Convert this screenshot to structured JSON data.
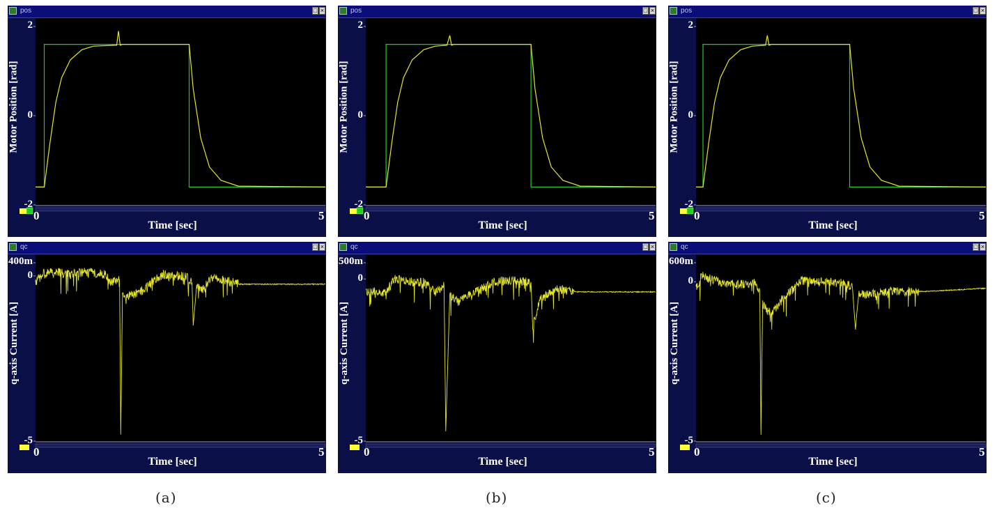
{
  "panels": [
    {
      "id": "a",
      "caption": "(a)",
      "pos_window": {
        "title": "pos",
        "chart_data": {
          "type": "line",
          "xlabel": "Time [sec]",
          "ylabel": "Motor Position [rad]",
          "xlim": [
            0,
            5
          ],
          "ylim": [
            -2,
            2
          ],
          "xticks": [
            "0",
            "5"
          ],
          "yticks": [
            "2",
            "0",
            "-2"
          ],
          "series": [
            {
              "color": "#22cc22",
              "x": [
                0,
                0.15,
                0.15,
                2.65,
                2.65,
                5
              ],
              "y": [
                -1.6,
                -1.6,
                1.6,
                1.6,
                -1.6,
                -1.6
              ]
            },
            {
              "color": "#e6e62a",
              "x": [
                0,
                0.15,
                0.25,
                0.35,
                0.45,
                0.6,
                0.8,
                1.0,
                1.4,
                1.43,
                1.46,
                1.5,
                2.0,
                2.65,
                2.72,
                2.85,
                3.0,
                3.2,
                3.5,
                5
              ],
              "y": [
                -1.6,
                -1.6,
                -0.6,
                0.3,
                0.85,
                1.25,
                1.48,
                1.56,
                1.58,
                1.9,
                1.58,
                1.6,
                1.6,
                1.6,
                0.6,
                -0.5,
                -1.15,
                -1.45,
                -1.58,
                -1.6
              ]
            }
          ]
        }
      },
      "cur_window": {
        "title": "qc",
        "chart_data": {
          "type": "line",
          "xlabel": "Time [sec]",
          "ylabel": "q-axis Current [A]",
          "xlim": [
            0,
            5
          ],
          "ylim": [
            -5,
            0.4
          ],
          "xticks": [
            "0",
            "5"
          ],
          "yticks": [
            "400m",
            "0",
            "-5"
          ],
          "series": [
            {
              "color": "#e6e62a",
              "x": [
                0,
                0.15,
                0.4,
                0.6,
                0.8,
                1.0,
                1.2,
                1.3,
                1.45,
                1.47,
                1.5,
                1.6,
                1.8,
                2.0,
                2.2,
                2.4,
                2.6,
                2.7,
                2.72,
                2.78,
                2.9,
                3.0,
                3.2,
                3.5,
                4.0,
                4.5,
                5
              ],
              "y": [
                -0.2,
                0.1,
                0.1,
                0.05,
                0.1,
                0.1,
                0.05,
                -0.2,
                -0.1,
                -4.8,
                -0.5,
                -0.6,
                -0.5,
                -0.2,
                0.05,
                0.0,
                0.0,
                -0.2,
                -1.5,
                -0.3,
                -0.4,
                -0.1,
                -0.1,
                -0.25,
                -0.25,
                -0.25,
                -0.25
              ]
            }
          ]
        }
      }
    },
    {
      "id": "b",
      "caption": "(b)",
      "pos_window": {
        "title": "pos",
        "chart_data": {
          "type": "line",
          "xlabel": "Time [sec]",
          "ylabel": "Motor Position [rad]",
          "xlim": [
            0,
            5
          ],
          "ylim": [
            -2,
            2
          ],
          "xticks": [
            "0",
            "5"
          ],
          "yticks": [
            "2",
            "0",
            "-2"
          ],
          "series": [
            {
              "color": "#22cc22",
              "x": [
                0,
                0.35,
                0.35,
                2.85,
                2.85,
                5
              ],
              "y": [
                -1.6,
                -1.6,
                1.6,
                1.6,
                -1.6,
                -1.6
              ]
            },
            {
              "color": "#e6e62a",
              "x": [
                0,
                0.35,
                0.45,
                0.55,
                0.65,
                0.8,
                1.0,
                1.2,
                1.4,
                1.45,
                1.48,
                1.52,
                2.0,
                2.85,
                2.92,
                3.05,
                3.2,
                3.4,
                3.7,
                5
              ],
              "y": [
                -1.6,
                -1.6,
                -0.6,
                0.3,
                0.85,
                1.25,
                1.48,
                1.56,
                1.58,
                1.8,
                1.58,
                1.6,
                1.6,
                1.6,
                0.6,
                -0.5,
                -1.15,
                -1.45,
                -1.58,
                -1.6
              ]
            }
          ]
        }
      },
      "cur_window": {
        "title": "qc",
        "chart_data": {
          "type": "line",
          "xlabel": "Time [sec]",
          "ylabel": "q-axis Current [A]",
          "xlim": [
            0,
            5
          ],
          "ylim": [
            -5,
            0.5
          ],
          "xticks": [
            "0",
            "5"
          ],
          "yticks": [
            "500m",
            "0",
            "-5"
          ],
          "series": [
            {
              "color": "#e6e62a",
              "x": [
                0,
                0.35,
                0.5,
                0.8,
                1.0,
                1.2,
                1.35,
                1.38,
                1.45,
                1.6,
                1.8,
                2.0,
                2.2,
                2.35,
                2.6,
                2.85,
                2.88,
                3.0,
                3.3,
                3.6,
                4.0,
                4.5,
                5
              ],
              "y": [
                -0.4,
                -0.4,
                0.0,
                -0.1,
                -0.1,
                -0.4,
                -0.2,
                -4.7,
                -0.5,
                -0.7,
                -0.5,
                -0.3,
                -0.1,
                -0.05,
                -0.05,
                -0.1,
                -1.5,
                -0.6,
                -0.3,
                -0.4,
                -0.4,
                -0.4,
                -0.4
              ]
            }
          ]
        }
      }
    },
    {
      "id": "c",
      "caption": "(c)",
      "pos_window": {
        "title": "pos",
        "chart_data": {
          "type": "line",
          "xlabel": "Time [sec]",
          "ylabel": "Motor Position [rad]",
          "xlim": [
            0,
            5
          ],
          "ylim": [
            -2,
            2
          ],
          "xticks": [
            "0",
            "5"
          ],
          "yticks": [
            "2",
            "0",
            "-2"
          ],
          "series": [
            {
              "color": "#22cc22",
              "x": [
                0,
                0.12,
                0.12,
                2.65,
                2.65,
                5
              ],
              "y": [
                -1.6,
                -1.6,
                1.6,
                1.6,
                -1.6,
                -1.6
              ]
            },
            {
              "color": "#e6e62a",
              "x": [
                0,
                0.12,
                0.22,
                0.32,
                0.42,
                0.57,
                0.77,
                0.97,
                1.2,
                1.23,
                1.26,
                1.3,
                2.0,
                2.65,
                2.72,
                2.85,
                3.0,
                3.2,
                3.5,
                5
              ],
              "y": [
                -1.6,
                -1.6,
                -0.6,
                0.3,
                0.85,
                1.25,
                1.48,
                1.56,
                1.58,
                1.8,
                1.58,
                1.6,
                1.6,
                1.6,
                0.6,
                -0.5,
                -1.15,
                -1.45,
                -1.58,
                -1.6
              ]
            }
          ]
        }
      },
      "cur_window": {
        "title": "qc",
        "chart_data": {
          "type": "line",
          "xlabel": "Time [sec]",
          "ylabel": "q-axis Current [A]",
          "xlim": [
            0,
            5
          ],
          "ylim": [
            -5,
            0.6
          ],
          "xticks": [
            "0",
            "5"
          ],
          "yticks": [
            "600m",
            "0",
            "-5"
          ],
          "series": [
            {
              "color": "#e6e62a",
              "x": [
                0,
                0.1,
                0.4,
                0.7,
                1.0,
                1.1,
                1.12,
                1.15,
                1.3,
                1.5,
                1.7,
                1.8,
                2.0,
                2.3,
                2.6,
                2.7,
                2.75,
                2.8,
                3.0,
                3.3,
                3.8,
                4.0,
                4.5,
                5
              ],
              "y": [
                -0.2,
                0.2,
                0.0,
                -0.1,
                0.0,
                -0.3,
                -4.8,
                -0.7,
                -1.0,
                -0.5,
                -0.2,
                0.05,
                0.0,
                0.0,
                -0.05,
                -0.2,
                -1.5,
                -0.4,
                -0.4,
                -0.3,
                -0.3,
                -0.3,
                -0.25,
                -0.2
              ]
            }
          ]
        }
      }
    }
  ]
}
